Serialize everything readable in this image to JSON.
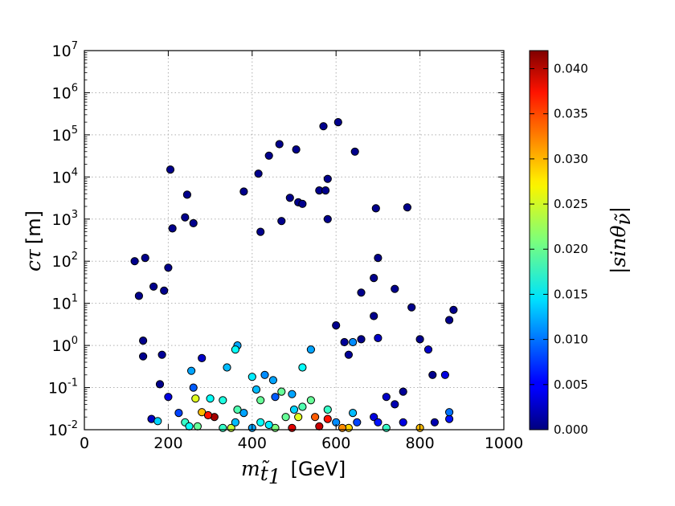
{
  "chart_data": {
    "type": "scatter",
    "title": "",
    "xlabel": {
      "math": "m",
      "subscript": "t̃",
      "subsubscript": "1",
      "unit": "[GeV]"
    },
    "ylabel": {
      "math": "cτ",
      "unit": "[m]"
    },
    "colorbar_label": "|sinθ",
    "colorbar_label_sub": "ν̃",
    "colorbar_label_end": "|",
    "xlim": [
      0,
      1000
    ],
    "ylim_log10": [
      -2,
      7
    ],
    "x_ticks": [
      0,
      200,
      400,
      600,
      800,
      1000
    ],
    "x_tick_labels": [
      "0",
      "200",
      "400",
      "600",
      "800",
      "1000"
    ],
    "y_ticks_exp": [
      -2,
      -1,
      0,
      1,
      2,
      3,
      4,
      5,
      6,
      7
    ],
    "y_tick_base": "10",
    "y_tick_exponents": [
      "-2",
      "-1",
      "0",
      "1",
      "2",
      "3",
      "4",
      "5",
      "6",
      "7"
    ],
    "color_range": [
      0,
      0.042
    ],
    "colorbar_ticks": [
      0.0,
      0.005,
      0.01,
      0.015,
      0.02,
      0.025,
      0.03,
      0.035,
      0.04
    ],
    "colorbar_tick_labels": [
      "0.000",
      "0.005",
      "0.010",
      "0.015",
      "0.020",
      "0.025",
      "0.030",
      "0.035",
      "0.040"
    ],
    "grid": true,
    "colormap": "jet",
    "points": [
      [
        605,
        200000,
        0.0005
      ],
      [
        570,
        160000,
        0.0005
      ],
      [
        645,
        40000,
        0.0005
      ],
      [
        465,
        60000,
        0.0005
      ],
      [
        440,
        32000,
        0.0005
      ],
      [
        505,
        45000,
        0.0005
      ],
      [
        205,
        15000,
        0.0005
      ],
      [
        415,
        12000,
        0.0005
      ],
      [
        580,
        9000,
        0.0005
      ],
      [
        380,
        4500,
        0.0005
      ],
      [
        560,
        4800,
        0.0005
      ],
      [
        575,
        4800,
        0.0005
      ],
      [
        245,
        3800,
        0.0005
      ],
      [
        490,
        3200,
        0.0005
      ],
      [
        510,
        2500,
        0.0005
      ],
      [
        520,
        2300,
        0.0005
      ],
      [
        695,
        1800,
        0.0005
      ],
      [
        770,
        1900,
        0.0005
      ],
      [
        240,
        1100,
        0.0005
      ],
      [
        580,
        1000,
        0.0005
      ],
      [
        470,
        900,
        0.0005
      ],
      [
        260,
        800,
        0.0005
      ],
      [
        210,
        600,
        0.0005
      ],
      [
        420,
        500,
        0.0005
      ],
      [
        120,
        100,
        0.0005
      ],
      [
        145,
        120,
        0.0005
      ],
      [
        165,
        25,
        0.0005
      ],
      [
        130,
        15,
        0.0005
      ],
      [
        200,
        70,
        0.0005
      ],
      [
        190,
        20,
        0.0005
      ],
      [
        870,
        4,
        0.0005
      ],
      [
        880,
        7,
        0.0005
      ],
      [
        740,
        22,
        0.0005
      ],
      [
        780,
        8,
        0.0005
      ],
      [
        700,
        120,
        0.0005
      ],
      [
        690,
        40,
        0.0005
      ],
      [
        660,
        18,
        0.0005
      ],
      [
        690,
        5,
        0.0005
      ],
      [
        140,
        1.3,
        0.0005
      ],
      [
        140,
        0.55,
        0.0005
      ],
      [
        185,
        0.6,
        0.001
      ],
      [
        180,
        0.12,
        0.0005
      ],
      [
        800,
        1.4,
        0.0005
      ],
      [
        820,
        0.8,
        0.003
      ],
      [
        830,
        0.2,
        0.0005
      ],
      [
        860,
        0.2,
        0.004
      ],
      [
        835,
        0.015,
        0.002
      ],
      [
        870,
        0.018,
        0.006
      ],
      [
        870,
        0.026,
        0.01
      ],
      [
        800,
        0.011,
        0.029
      ],
      [
        660,
        1.4,
        0.0005
      ],
      [
        620,
        1.2,
        0.001
      ],
      [
        700,
        1.5,
        0.003
      ],
      [
        600,
        3,
        0.0005
      ],
      [
        630,
        0.6,
        0.001
      ],
      [
        720,
        0.06,
        0.003
      ],
      [
        740,
        0.04,
        0.002
      ],
      [
        760,
        0.08,
        0.001
      ],
      [
        690,
        0.02,
        0.004
      ],
      [
        720,
        0.011,
        0.018
      ],
      [
        630,
        0.011,
        0.028
      ],
      [
        615,
        0.011,
        0.031
      ],
      [
        510,
        0.02,
        0.025
      ],
      [
        310,
        0.02,
        0.0405
      ],
      [
        280,
        0.026,
        0.029
      ],
      [
        295,
        0.022,
        0.036
      ],
      [
        265,
        0.055,
        0.025
      ],
      [
        240,
        0.015,
        0.018
      ],
      [
        520,
        0.035,
        0.019
      ],
      [
        480,
        0.02,
        0.02
      ],
      [
        550,
        0.02,
        0.033
      ],
      [
        580,
        0.018,
        0.036
      ],
      [
        495,
        0.011,
        0.038
      ],
      [
        455,
        0.011,
        0.021
      ],
      [
        400,
        0.011,
        0.012
      ],
      [
        350,
        0.011,
        0.024
      ],
      [
        330,
        0.011,
        0.018
      ],
      [
        160,
        0.018,
        0.003
      ],
      [
        175,
        0.016,
        0.014
      ],
      [
        200,
        0.06,
        0.004
      ],
      [
        225,
        0.025,
        0.008
      ],
      [
        250,
        0.012,
        0.016
      ],
      [
        270,
        0.012,
        0.02
      ],
      [
        360,
        0.015,
        0.013
      ],
      [
        420,
        0.015,
        0.016
      ],
      [
        440,
        0.013,
        0.015
      ],
      [
        600,
        0.015,
        0.011
      ],
      [
        650,
        0.015,
        0.008
      ],
      [
        700,
        0.015,
        0.006
      ],
      [
        760,
        0.015,
        0.004
      ],
      [
        560,
        0.012,
        0.039
      ],
      [
        500,
        0.03,
        0.014
      ],
      [
        330,
        0.05,
        0.017
      ],
      [
        420,
        0.05,
        0.02
      ],
      [
        540,
        0.05,
        0.02
      ],
      [
        580,
        0.03,
        0.018
      ],
      [
        640,
        0.025,
        0.013
      ],
      [
        365,
        0.03,
        0.019
      ],
      [
        380,
        0.025,
        0.012
      ],
      [
        300,
        0.055,
        0.016
      ],
      [
        455,
        0.06,
        0.009
      ],
      [
        470,
        0.08,
        0.02
      ],
      [
        495,
        0.07,
        0.012
      ],
      [
        410,
        0.09,
        0.013
      ],
      [
        400,
        0.18,
        0.015
      ],
      [
        430,
        0.2,
        0.011
      ],
      [
        450,
        0.15,
        0.012
      ],
      [
        340,
        0.3,
        0.013
      ],
      [
        365,
        1.0,
        0.012
      ],
      [
        360,
        0.8,
        0.016
      ],
      [
        640,
        1.2,
        0.011
      ],
      [
        540,
        0.8,
        0.012
      ],
      [
        520,
        0.3,
        0.016
      ],
      [
        255,
        0.25,
        0.012
      ],
      [
        260,
        0.1,
        0.009
      ],
      [
        280,
        0.5,
        0.003
      ]
    ]
  }
}
